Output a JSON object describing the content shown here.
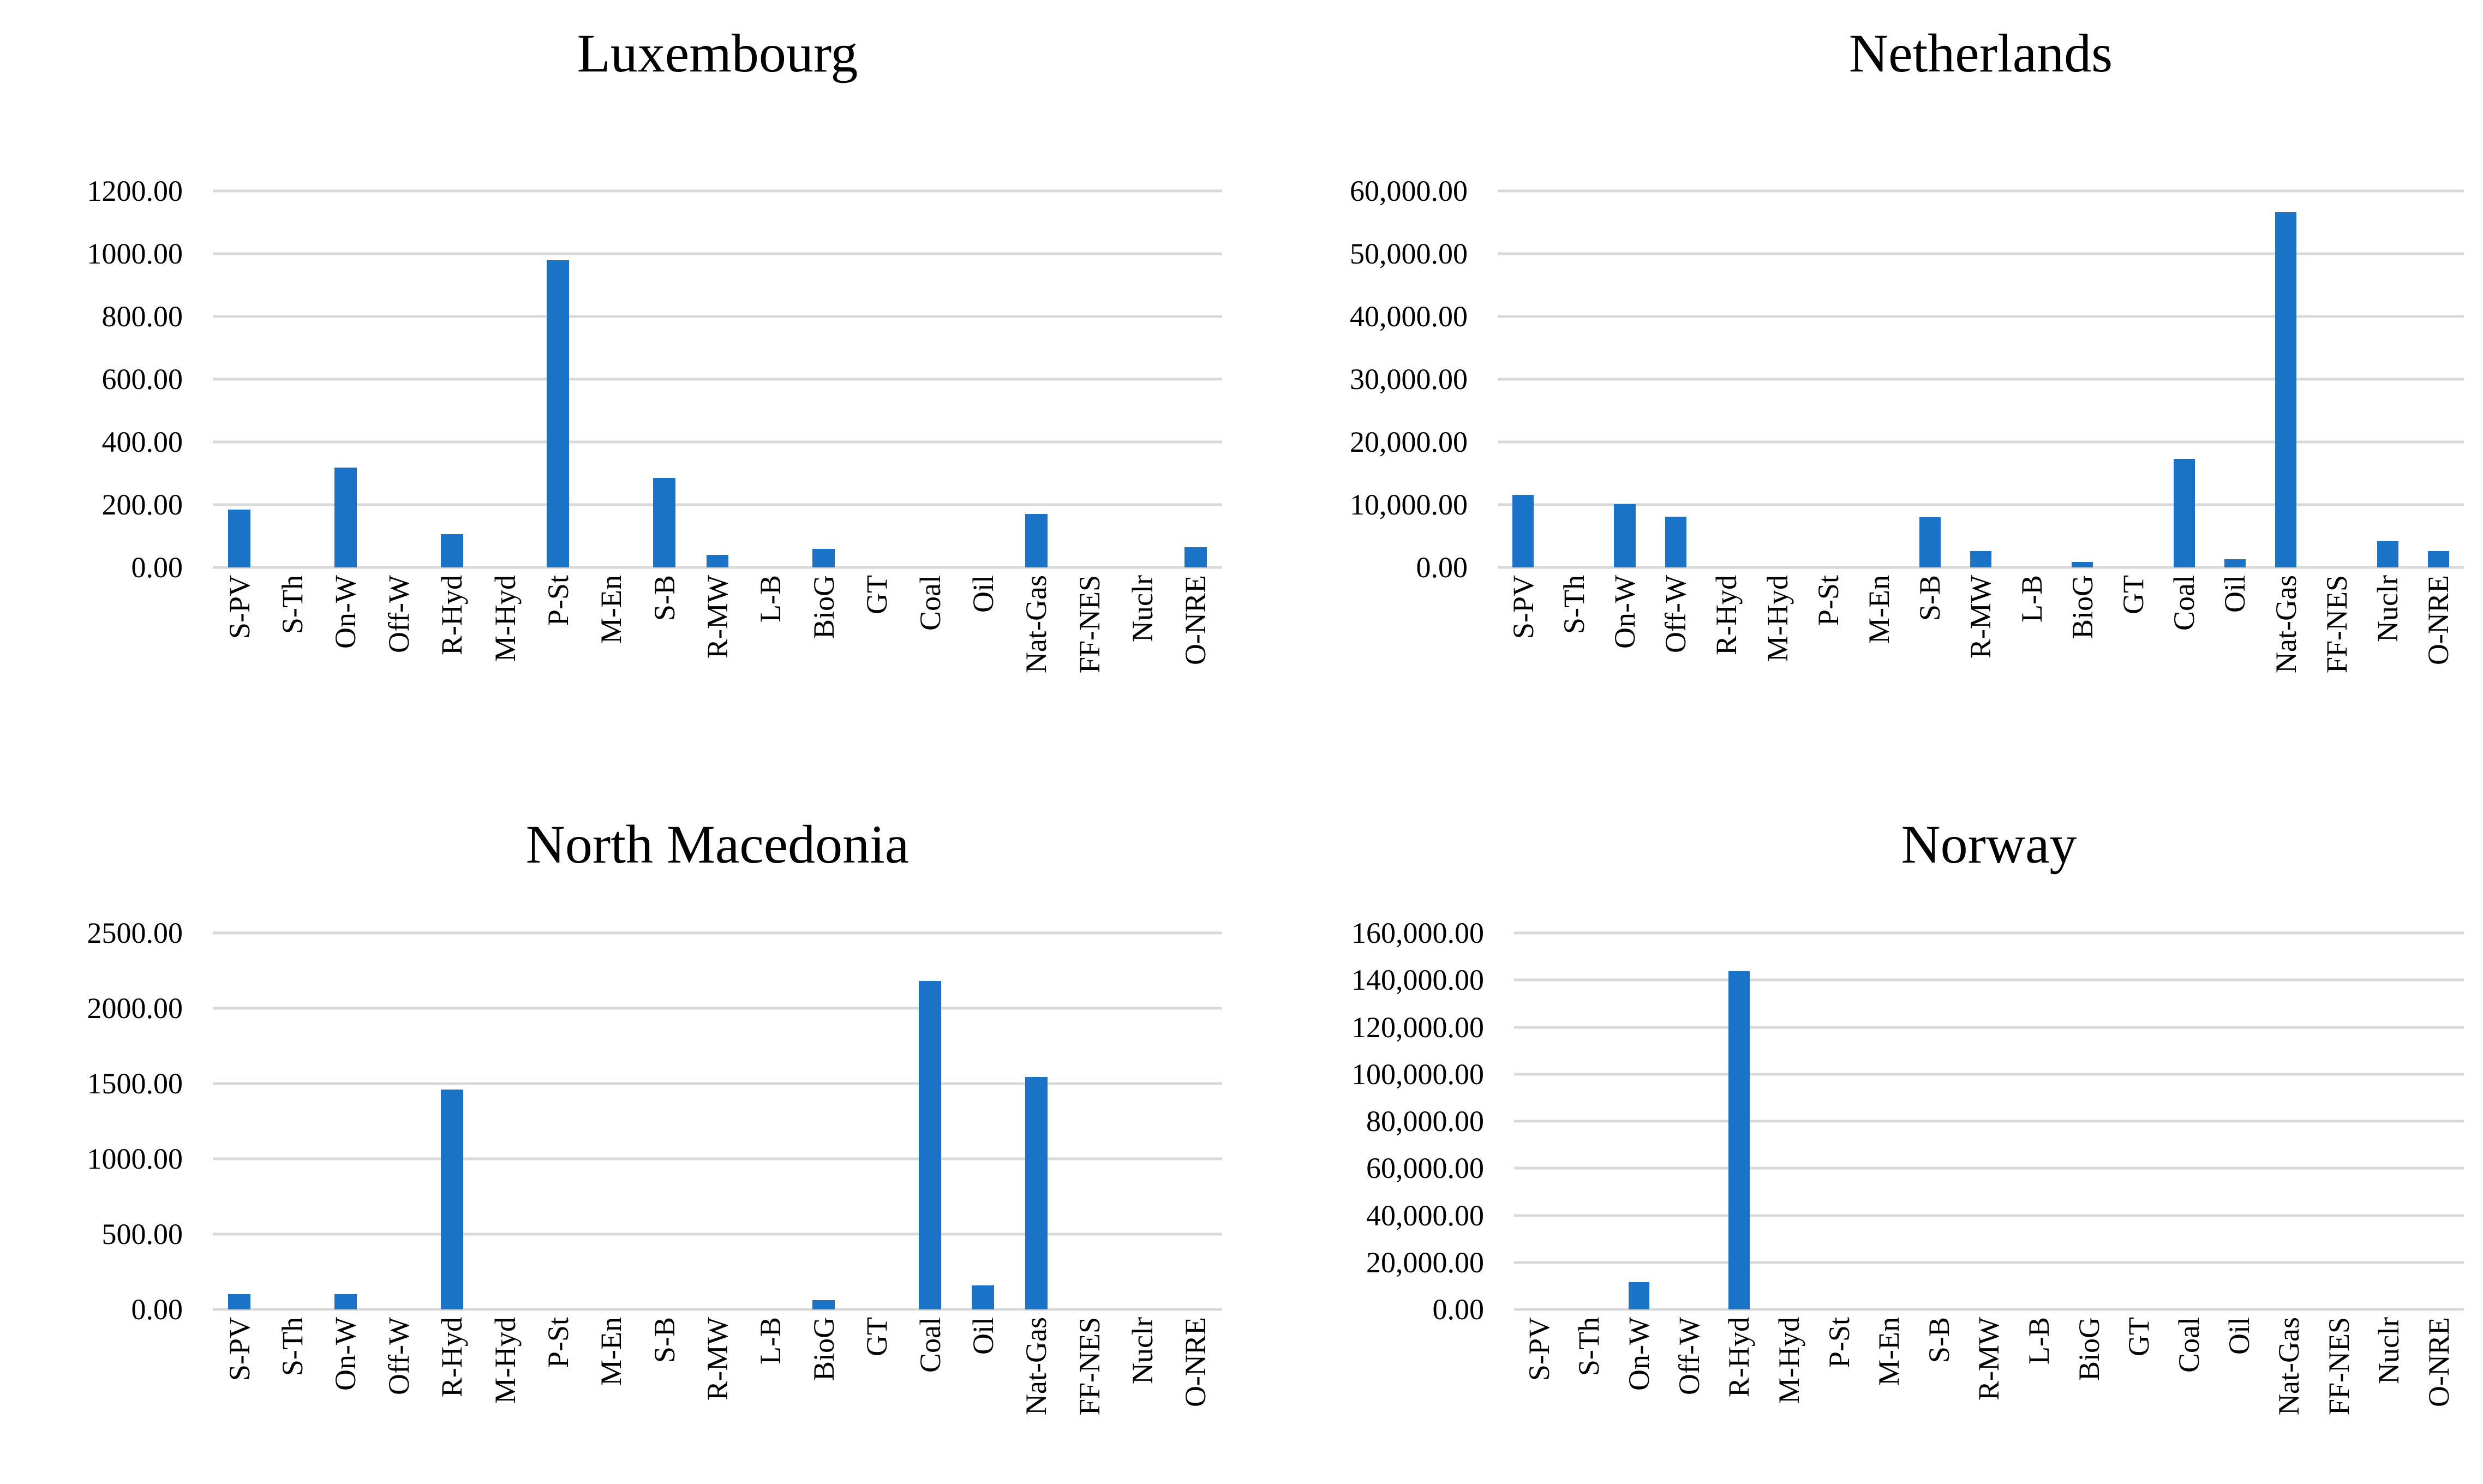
{
  "style": {
    "bar_color": "#1A73C6",
    "gridline_color": "#D9D9D9",
    "background_color": "#FFFFFF",
    "text_color": "#000000"
  },
  "chart_data": [
    {
      "type": "bar",
      "title": "Luxembourg",
      "categories": [
        "S-PV",
        "S-Th",
        "On-W",
        "Off-W",
        "R-Hyd",
        "M-Hyd",
        "P-St",
        "M-En",
        "S-B",
        "R-MW",
        "L-B",
        "BioG",
        "GT",
        "Coal",
        "Oil",
        "Nat-Gas",
        "FF-NES",
        "Nuclr",
        "O-NRE"
      ],
      "values": [
        185,
        0,
        318,
        0,
        106,
        0,
        980,
        0,
        285,
        40,
        0,
        60,
        0,
        0,
        0,
        170,
        0,
        0,
        65
      ],
      "ylim": [
        0,
        1200
      ],
      "y_tick_step": 200,
      "y_ticks": [
        "0.00",
        "200.00",
        "400.00",
        "600.00",
        "800.00",
        "1000.00",
        "1200.00"
      ],
      "xlabel": "",
      "ylabel": "",
      "grid": "horizontal",
      "legend": "none"
    },
    {
      "type": "bar",
      "title": "Netherlands",
      "categories": [
        "S-PV",
        "S-Th",
        "On-W",
        "Off-W",
        "R-Hyd",
        "M-Hyd",
        "P-St",
        "M-En",
        "S-B",
        "R-MW",
        "L-B",
        "BioG",
        "GT",
        "Coal",
        "Oil",
        "Nat-Gas",
        "FF-NES",
        "Nuclr",
        "O-NRE"
      ],
      "values": [
        11600,
        0,
        10100,
        8100,
        0,
        0,
        0,
        0,
        8000,
        2600,
        0,
        900,
        0,
        17300,
        1300,
        56600,
        0,
        4200,
        2600
      ],
      "ylim": [
        0,
        60000
      ],
      "y_tick_step": 10000,
      "y_ticks": [
        "0.00",
        "10,000.00",
        "20,000.00",
        "30,000.00",
        "40,000.00",
        "50,000.00",
        "60,000.00"
      ],
      "xlabel": "",
      "ylabel": "",
      "grid": "horizontal",
      "legend": "none"
    },
    {
      "type": "bar",
      "title": "North Macedonia",
      "categories": [
        "S-PV",
        "S-Th",
        "On-W",
        "Off-W",
        "R-Hyd",
        "M-Hyd",
        "P-St",
        "M-En",
        "S-B",
        "R-MW",
        "L-B",
        "BioG",
        "GT",
        "Coal",
        "Oil",
        "Nat-Gas",
        "FF-NES",
        "Nuclr",
        "O-NRE"
      ],
      "values": [
        100,
        0,
        100,
        0,
        1460,
        0,
        0,
        0,
        0,
        0,
        0,
        60,
        0,
        2180,
        160,
        1545,
        0,
        0,
        0
      ],
      "ylim": [
        0,
        2500
      ],
      "y_tick_step": 500,
      "y_ticks": [
        "0.00",
        "500.00",
        "1000.00",
        "1500.00",
        "2000.00",
        "2500.00"
      ],
      "xlabel": "",
      "ylabel": "",
      "grid": "horizontal",
      "legend": "none"
    },
    {
      "type": "bar",
      "title": "Norway",
      "categories": [
        "S-PV",
        "S-Th",
        "On-W",
        "Off-W",
        "R-Hyd",
        "M-Hyd",
        "P-St",
        "M-En",
        "S-B",
        "R-MW",
        "L-B",
        "BioG",
        "GT",
        "Coal",
        "Oil",
        "Nat-Gas",
        "FF-NES",
        "Nuclr",
        "O-NRE"
      ],
      "values": [
        0,
        0,
        11700,
        0,
        143700,
        0,
        0,
        0,
        0,
        0,
        0,
        0,
        0,
        0,
        0,
        0,
        0,
        0,
        0
      ],
      "ylim": [
        0,
        160000
      ],
      "y_tick_step": 20000,
      "y_ticks": [
        "0.00",
        "20,000.00",
        "40,000.00",
        "60,000.00",
        "80,000.00",
        "100,000.00",
        "120,000.00",
        "140,000.00",
        "160,000.00"
      ],
      "xlabel": "",
      "ylabel": "",
      "grid": "horizontal",
      "legend": "none"
    }
  ]
}
